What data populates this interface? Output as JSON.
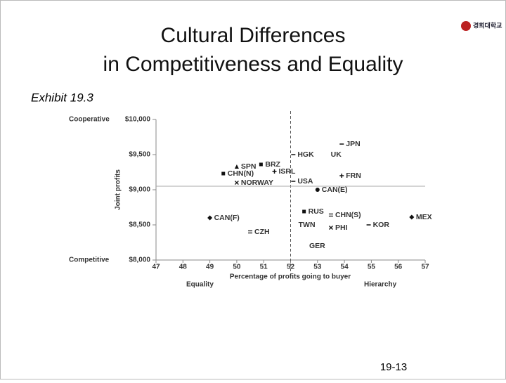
{
  "slide": {
    "title_line1": "Cultural Differences",
    "title_line2": "in Competitiveness and Equality",
    "subtitle": "Exhibit 19.3",
    "page_number": "19-13",
    "logo_text": "경희대학교"
  },
  "chart_data": {
    "type": "scatter",
    "x_label": "Percentage of profits going to buyer",
    "y_label": "Joint profits",
    "x_low_label": "Equality",
    "x_high_label": "Hierarchy",
    "y_high_label": "Cooperative",
    "y_low_label": "Competitive",
    "labels": [
      "JPN",
      "UK",
      "HGK",
      "BRZ",
      "SPN",
      "ISRL",
      "CHN(N)",
      "NORWAY",
      "USA",
      "FRN",
      "CAN(E)",
      "RUS",
      "CHN(S)",
      "MEX",
      "CAN(F)",
      "KOR",
      "TWN",
      "PHI",
      "CZH",
      "GER"
    ],
    "x": [
      53.9,
      53.7,
      52.1,
      50.9,
      50.0,
      51.4,
      49.5,
      50.0,
      52.1,
      53.9,
      53.0,
      52.5,
      53.5,
      56.5,
      49.0,
      54.9,
      52.5,
      53.5,
      50.5,
      52.9
    ],
    "values": [
      9650,
      9500,
      9500,
      9360,
      9330,
      9260,
      9230,
      9100,
      9120,
      9200,
      9000,
      8690,
      8640,
      8610,
      8600,
      8500,
      8500,
      8460,
      8400,
      8200
    ],
    "markers": [
      "dash",
      "none",
      "dash",
      "square",
      "triangle",
      "plus",
      "square",
      "cross",
      "dash",
      "plus",
      "circle",
      "square",
      "approx",
      "diamond",
      "diamond",
      "dash",
      "none",
      "cross",
      "approx",
      "none"
    ],
    "color": "#111111",
    "xlim": [
      47,
      57
    ],
    "xticks": [
      47,
      48,
      49,
      50,
      51,
      52,
      53,
      54,
      55,
      56,
      57
    ],
    "ylim": [
      8000,
      10000
    ],
    "yticks": [
      {
        "value": 8000,
        "label": "$8,000"
      },
      {
        "value": 8500,
        "label": "$8,500"
      },
      {
        "value": 9000,
        "label": "$9,000"
      },
      {
        "value": 9500,
        "label": "$9,500"
      },
      {
        "value": 10000,
        "label": "$10,000"
      }
    ],
    "reference_lines": {
      "x": 52,
      "y": 9050
    }
  }
}
